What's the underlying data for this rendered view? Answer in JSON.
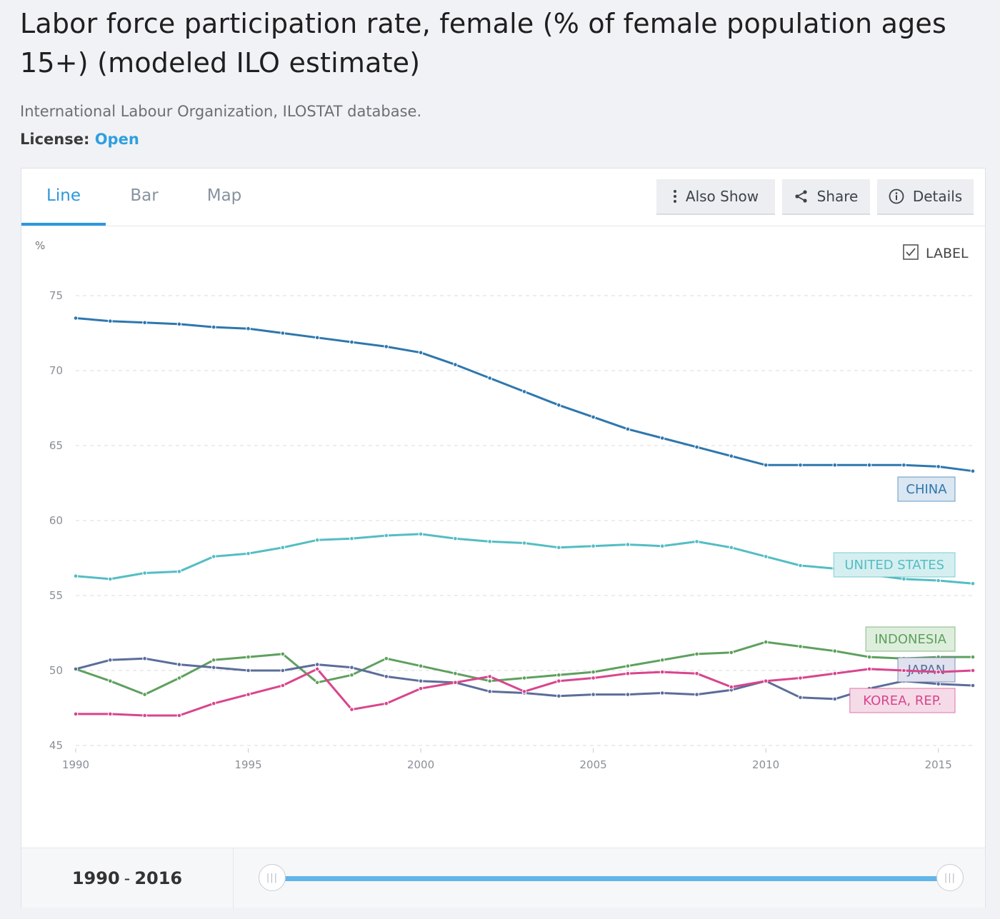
{
  "page": {
    "title": "Labor force participation rate, female (% of female population ages 15+) (modeled ILO estimate)",
    "source": "International Labour Organization, ILOSTAT database.",
    "license_label": "License:",
    "license_value": "Open"
  },
  "tabs": [
    {
      "label": "Line",
      "active": true
    },
    {
      "label": "Bar",
      "active": false
    },
    {
      "label": "Map",
      "active": false
    }
  ],
  "toolbar": {
    "also_show": "Also Show",
    "share": "Share",
    "details": "Details"
  },
  "label_toggle": {
    "label": "LABEL",
    "checked": true
  },
  "range": {
    "start": "1990",
    "separator": "-",
    "end": "2016"
  },
  "slider": {
    "start_year": 1990,
    "end_year": 2016
  },
  "colors": {
    "accent": "#2c97de",
    "china": "#2e77ae",
    "united_states": "#54bdc3",
    "indonesia": "#5ea05e",
    "japan": "#5b6d99",
    "korea": "#d9458d"
  },
  "chart_data": {
    "type": "line",
    "ylabel": "%",
    "ylim": [
      45,
      75
    ],
    "yticks": [
      45,
      50,
      55,
      60,
      65,
      70,
      75
    ],
    "xlim": [
      1990,
      2016
    ],
    "xticks": [
      1990,
      1995,
      2000,
      2005,
      2010,
      2015
    ],
    "grid": true,
    "x": [
      1990,
      1991,
      1992,
      1993,
      1994,
      1995,
      1996,
      1997,
      1998,
      1999,
      2000,
      2001,
      2002,
      2003,
      2004,
      2005,
      2006,
      2007,
      2008,
      2009,
      2010,
      2011,
      2012,
      2013,
      2014,
      2015,
      2016
    ],
    "series": [
      {
        "name": "CHINA",
        "color": "#2e77ae",
        "label_bg": "#dae6f2",
        "values": [
          73.5,
          73.3,
          73.2,
          73.1,
          72.9,
          72.8,
          72.5,
          72.2,
          71.9,
          71.6,
          71.2,
          70.4,
          69.5,
          68.6,
          67.7,
          66.9,
          66.1,
          65.5,
          64.9,
          64.3,
          63.7,
          63.7,
          63.7,
          63.7,
          63.7,
          63.6,
          63.3
        ]
      },
      {
        "name": "UNITED STATES",
        "color": "#54bdc3",
        "label_bg": "#d5eff0",
        "values": [
          56.3,
          56.1,
          56.5,
          56.6,
          57.6,
          57.8,
          58.2,
          58.7,
          58.8,
          59.0,
          59.1,
          58.8,
          58.6,
          58.5,
          58.2,
          58.3,
          58.4,
          58.3,
          58.6,
          58.2,
          57.6,
          57.0,
          56.8,
          56.4,
          56.1,
          56.0,
          55.8
        ]
      },
      {
        "name": "INDONESIA",
        "color": "#5ea05e",
        "label_bg": "#deeedc",
        "values": [
          50.1,
          49.3,
          48.4,
          49.5,
          50.7,
          50.9,
          51.1,
          49.2,
          49.7,
          50.8,
          50.3,
          49.8,
          49.3,
          49.5,
          49.7,
          49.9,
          50.3,
          50.7,
          51.1,
          51.2,
          51.9,
          51.6,
          51.3,
          50.9,
          50.8,
          50.9,
          50.9
        ]
      },
      {
        "name": "JAPAN",
        "color": "#5b6d99",
        "label_bg": "#dfe1ee",
        "values": [
          50.1,
          50.7,
          50.8,
          50.4,
          50.2,
          50.0,
          50.0,
          50.4,
          50.2,
          49.6,
          49.3,
          49.2,
          48.6,
          48.5,
          48.3,
          48.4,
          48.4,
          48.5,
          48.4,
          48.7,
          49.3,
          48.2,
          48.1,
          48.8,
          49.3,
          49.1,
          49.0
        ]
      },
      {
        "name": "KOREA, REP.",
        "color": "#d9458d",
        "label_bg": "#f5dbe8",
        "values": [
          47.1,
          47.1,
          47.0,
          47.0,
          47.8,
          48.4,
          49.0,
          50.1,
          47.4,
          47.8,
          48.8,
          49.2,
          49.6,
          48.6,
          49.3,
          49.5,
          49.8,
          49.9,
          49.8,
          48.9,
          49.3,
          49.5,
          49.8,
          50.1,
          50.0,
          49.9,
          50.0
        ]
      }
    ]
  }
}
